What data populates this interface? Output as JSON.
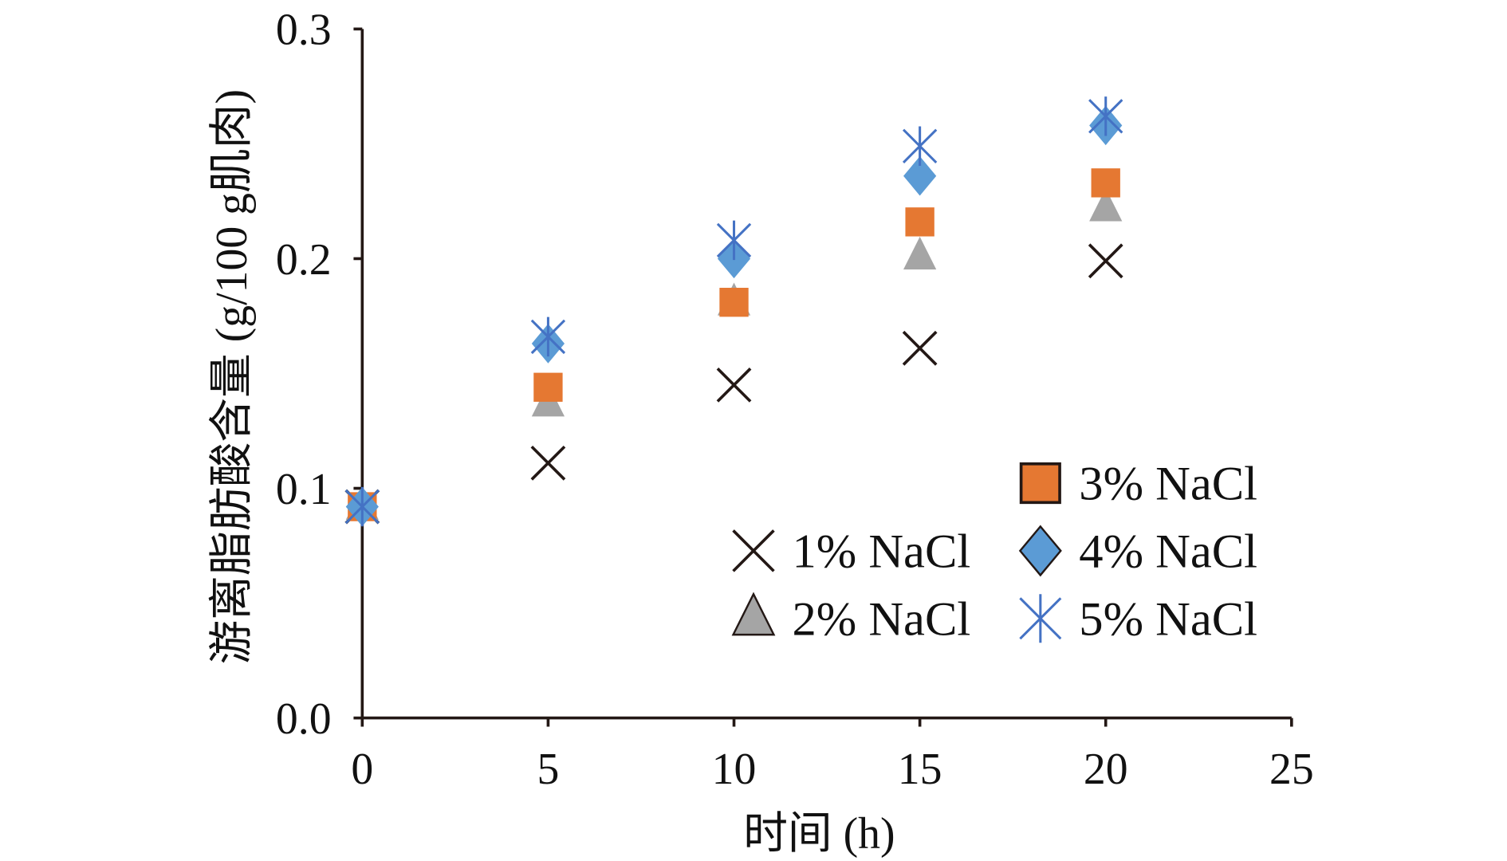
{
  "chart_data": {
    "type": "scatter",
    "title": "",
    "xlabel": "时间 (h)",
    "ylabel": "游离脂肪酸含量 (g/100 g肌肉)",
    "xlim": [
      0,
      25
    ],
    "ylim": [
      0,
      0.3
    ],
    "xticks": [
      "0",
      "5",
      "10",
      "15",
      "20",
      "25"
    ],
    "yticks": [
      "0.0",
      "0.1",
      "0.2",
      "0.3"
    ],
    "grid": false,
    "legend_position": "bottom-right",
    "x": [
      0,
      5,
      10,
      15,
      20
    ],
    "series": [
      {
        "name": "1% NaCl",
        "marker": "x",
        "color": "#231815",
        "values": [
          0.092,
          0.111,
          0.145,
          0.161,
          0.199
        ]
      },
      {
        "name": "2% NaCl",
        "marker": "triangle",
        "color": "#a5a5a5",
        "values": [
          0.092,
          0.137,
          0.181,
          0.201,
          0.222
        ]
      },
      {
        "name": "3% NaCl",
        "marker": "square",
        "color": "#e57832",
        "values": [
          0.092,
          0.144,
          0.181,
          0.216,
          0.233
        ]
      },
      {
        "name": "4% NaCl",
        "marker": "diamond",
        "color": "#5b9bd5",
        "values": [
          0.092,
          0.163,
          0.2,
          0.236,
          0.258
        ]
      },
      {
        "name": "5% NaCl",
        "marker": "asterisk",
        "color": "#4472c4",
        "values": [
          0.092,
          0.166,
          0.208,
          0.249,
          0.262
        ]
      }
    ]
  }
}
